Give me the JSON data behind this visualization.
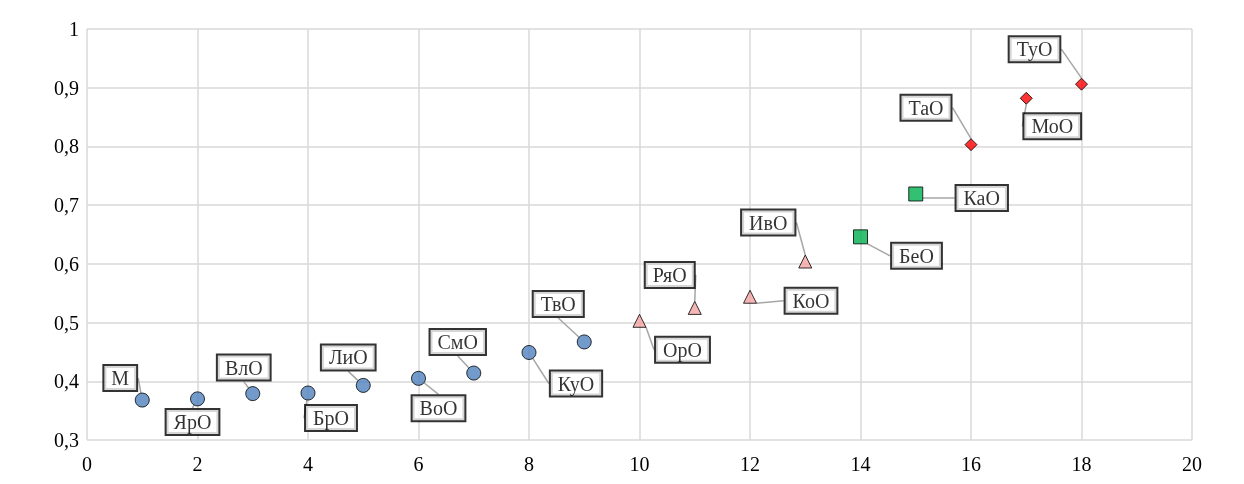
{
  "chart_data": {
    "type": "scatter",
    "xlim": [
      0,
      20
    ],
    "xticks": [
      0,
      2,
      4,
      6,
      8,
      10,
      12,
      14,
      16,
      18,
      20
    ],
    "ylim": [
      0.3,
      1
    ],
    "yticks": [
      {
        "value": 0.3,
        "label": "0,3"
      },
      {
        "value": 0.4,
        "label": "0,4"
      },
      {
        "value": 0.5,
        "label": "0,5"
      },
      {
        "value": 0.6,
        "label": "0,6"
      },
      {
        "value": 0.7,
        "label": "0,7"
      },
      {
        "value": 0.8,
        "label": "0,8"
      },
      {
        "value": 0.9,
        "label": "0,9"
      },
      1
    ],
    "grid": true,
    "series": [
      {
        "color": "#4f81bd",
        "marker": "circle",
        "x": [
          1,
          2,
          3,
          4,
          5,
          6,
          7,
          8,
          9
        ],
        "values": [
          0.368,
          0.37,
          0.379,
          0.38,
          0.393,
          0.405,
          0.414,
          0.449,
          0.467
        ]
      },
      {
        "color": "#f4a4a4",
        "marker": "triangle",
        "x": [
          10,
          11,
          12,
          13
        ],
        "values": [
          0.503,
          0.525,
          0.544,
          0.604
        ]
      },
      {
        "color": "#00b050",
        "marker": "square",
        "x": [
          14,
          15
        ],
        "values": [
          0.646,
          0.719
        ]
      },
      {
        "color": "#ff0000",
        "marker": "diamond",
        "x": [
          16,
          17,
          18
        ],
        "values": [
          0.803,
          0.882,
          0.906
        ]
      }
    ],
    "annotations": [
      {
        "text": "М",
        "x": 1,
        "y": 0.368
      },
      {
        "text": "ЯрО",
        "x": 2,
        "y": 0.37
      },
      {
        "text": "ВлО",
        "x": 3,
        "y": 0.379
      },
      {
        "text": "БрО",
        "x": 4,
        "y": 0.38
      },
      {
        "text": "ЛиО",
        "x": 5,
        "y": 0.393
      },
      {
        "text": "ВоО",
        "x": 6,
        "y": 0.405
      },
      {
        "text": "СмО",
        "x": 7,
        "y": 0.414
      },
      {
        "text": "КуО",
        "x": 8,
        "y": 0.449
      },
      {
        "text": "ТвО",
        "x": 9,
        "y": 0.467
      },
      {
        "text": "ОрО",
        "x": 10,
        "y": 0.503
      },
      {
        "text": "РяО",
        "x": 11,
        "y": 0.525
      },
      {
        "text": "КоО",
        "x": 12,
        "y": 0.544
      },
      {
        "text": "ИвО",
        "x": 13,
        "y": 0.604
      },
      {
        "text": "БеО",
        "x": 14,
        "y": 0.646
      },
      {
        "text": "КаО",
        "x": 15,
        "y": 0.719
      },
      {
        "text": "ТаО",
        "x": 16,
        "y": 0.803
      },
      {
        "text": "МоО",
        "x": 17,
        "y": 0.882
      },
      {
        "text": "ТуО",
        "x": 18,
        "y": 0.906
      }
    ]
  }
}
